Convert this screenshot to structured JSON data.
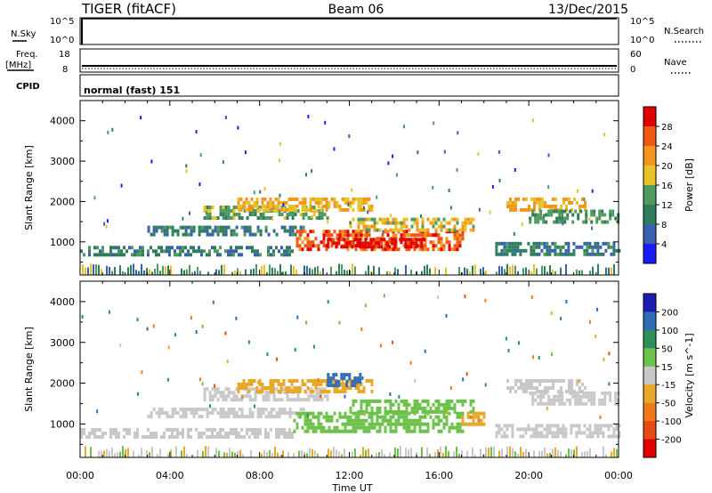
{
  "header": {
    "title": "TIGER (fitACF)",
    "beam": "Beam 06",
    "date": "13/Dec/2015"
  },
  "top_panels": {
    "nsky_label": "N.Sky",
    "nsearch_label": "N.Search",
    "noise_ticks": [
      "10^5",
      "10^0"
    ],
    "freq_label": "Freq.",
    "freq_unit": "[MHz]",
    "freq_ticks": [
      "18",
      "8"
    ],
    "nave_ticks": [
      "60",
      "0"
    ],
    "nave_label": "Nave",
    "cpid_label": "CPID",
    "cpid_text": "normal (fast) 151"
  },
  "x_axis": {
    "label": "Time UT",
    "ticks": [
      "00:00",
      "04:00",
      "08:00",
      "12:00",
      "16:00",
      "20:00",
      "00:00"
    ]
  },
  "colors": {
    "power": [
      "#1a1aff",
      "#3b5fb0",
      "#2e7d5b",
      "#4f9a5f",
      "#e8c22a",
      "#f2961e",
      "#ee5a14",
      "#e00000"
    ],
    "velocity": [
      "#1c1cb4",
      "#2e6db5",
      "#2f8f5a",
      "#6cc24a",
      "#c8c8c8",
      "#e8a82a",
      "#ef7a1a",
      "#e84a14",
      "#e00000"
    ]
  },
  "chart_data": [
    {
      "type": "heatmap",
      "title": "",
      "ylabel": "Slant Range [km]",
      "xlabel": "",
      "xlim": [
        0,
        24
      ],
      "ylim": [
        180,
        4500
      ],
      "yticks": [
        1000,
        2000,
        3000,
        4000
      ],
      "colorbar": {
        "label": "Power [dB]",
        "ticks": [
          "4",
          "8",
          "12",
          "16",
          "20",
          "24",
          "28"
        ],
        "range": [
          0,
          32
        ]
      },
      "bands": [
        {
          "t0": 0.0,
          "t1": 9.5,
          "r0": 700,
          "r1": 900,
          "value": 10
        },
        {
          "t0": 3.0,
          "t1": 10.0,
          "r0": 1150,
          "r1": 1400,
          "value": 9
        },
        {
          "t0": 5.5,
          "t1": 11.0,
          "r0": 1600,
          "r1": 1900,
          "value": 14
        },
        {
          "t0": 7.0,
          "t1": 13.0,
          "r0": 1800,
          "r1": 2100,
          "value": 20
        },
        {
          "t0": 9.5,
          "t1": 17.0,
          "r0": 800,
          "r1": 1300,
          "value": 26
        },
        {
          "t0": 11.0,
          "t1": 15.5,
          "r0": 850,
          "r1": 1100,
          "value": 30
        },
        {
          "t0": 12.0,
          "t1": 17.5,
          "r0": 1300,
          "r1": 1600,
          "value": 18
        },
        {
          "t0": 19.0,
          "t1": 22.5,
          "r0": 1800,
          "r1": 2100,
          "value": 20
        },
        {
          "t0": 20.0,
          "t1": 24.0,
          "r0": 1500,
          "r1": 1800,
          "value": 12
        },
        {
          "t0": 18.5,
          "t1": 24.0,
          "r0": 700,
          "r1": 1000,
          "value": 9
        }
      ]
    },
    {
      "type": "heatmap",
      "title": "",
      "ylabel": "Slant Range [km]",
      "xlabel": "Time UT",
      "xlim": [
        0,
        24
      ],
      "ylim": [
        180,
        4500
      ],
      "yticks": [
        1000,
        2000,
        3000,
        4000
      ],
      "colorbar": {
        "label": "Velocity [m s^-1]",
        "ticks": [
          "200",
          "100",
          "50",
          "15",
          "-15",
          "-50",
          "-100",
          "-200"
        ],
        "range": [
          -250,
          250
        ]
      },
      "bands": [
        {
          "t0": 0.0,
          "t1": 9.5,
          "r0": 700,
          "r1": 900,
          "value": 0
        },
        {
          "t0": 3.0,
          "t1": 10.0,
          "r0": 1150,
          "r1": 1400,
          "value": 0
        },
        {
          "t0": 5.5,
          "t1": 11.0,
          "r0": 1600,
          "r1": 1900,
          "value": 0
        },
        {
          "t0": 7.0,
          "t1": 13.0,
          "r0": 1800,
          "r1": 2100,
          "value": -30
        },
        {
          "t0": 11.0,
          "t1": 12.5,
          "r0": 1950,
          "r1": 2250,
          "value": 180
        },
        {
          "t0": 9.5,
          "t1": 17.0,
          "r0": 800,
          "r1": 1300,
          "value": 30
        },
        {
          "t0": 12.0,
          "t1": 17.5,
          "r0": 1300,
          "r1": 1600,
          "value": 35
        },
        {
          "t0": 17.0,
          "t1": 18.0,
          "r0": 1000,
          "r1": 1300,
          "value": -40
        },
        {
          "t0": 19.0,
          "t1": 22.5,
          "r0": 1800,
          "r1": 2100,
          "value": 0
        },
        {
          "t0": 20.0,
          "t1": 24.0,
          "r0": 1500,
          "r1": 1800,
          "value": 0
        },
        {
          "t0": 18.5,
          "t1": 24.0,
          "r0": 700,
          "r1": 1000,
          "value": 0
        }
      ]
    }
  ]
}
